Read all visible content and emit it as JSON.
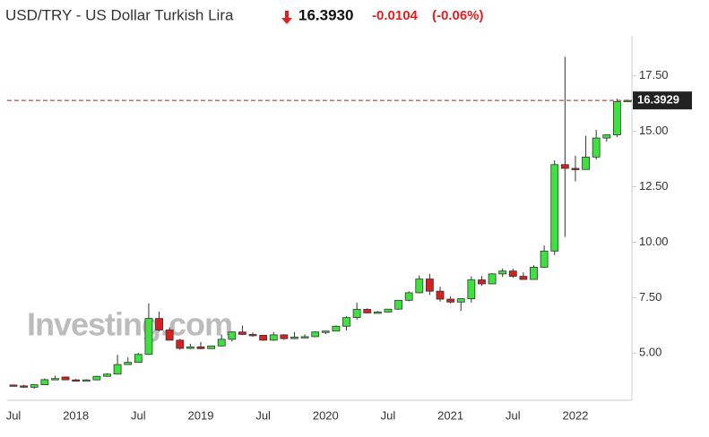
{
  "header": {
    "title": "USD/TRY - US Dollar Turkish Lira",
    "price": "16.3930",
    "change": "-0.0104",
    "change_pct": "(-0.06%)"
  },
  "chart_data": {
    "type": "candlestick",
    "watermark": "Investing.com",
    "categories": [
      "Jul",
      null,
      null,
      null,
      null,
      null,
      "2018",
      null,
      null,
      null,
      null,
      null,
      "Jul",
      null,
      null,
      null,
      null,
      null,
      "2019",
      null,
      null,
      null,
      null,
      null,
      "Jul",
      null,
      null,
      null,
      null,
      null,
      "2020",
      null,
      null,
      null,
      null,
      null,
      "Jul",
      null,
      null,
      null,
      null,
      null,
      "2021",
      null,
      null,
      null,
      null,
      null,
      "Jul",
      null,
      null,
      null,
      null,
      null,
      "2022",
      null,
      null,
      null,
      null,
      null
    ],
    "open": [
      3.56,
      3.52,
      3.46,
      3.57,
      3.8,
      3.92,
      3.79,
      3.76,
      3.79,
      3.95,
      4.05,
      4.48,
      4.58,
      4.94,
      6.56,
      6.04,
      5.58,
      5.21,
      5.28,
      5.2,
      5.32,
      5.62,
      5.95,
      5.84,
      5.8,
      5.58,
      5.82,
      5.65,
      5.72,
      5.74,
      5.95,
      5.99,
      6.21,
      6.6,
      6.97,
      6.81,
      6.85,
      6.98,
      7.38,
      7.72,
      8.34,
      7.79,
      7.43,
      7.3,
      7.45,
      8.3,
      8.12,
      8.57,
      8.7,
      8.46,
      8.32,
      8.87,
      9.6,
      13.5,
      13.33,
      13.28,
      13.84,
      14.7,
      14.84,
      16.39
    ],
    "high": [
      3.58,
      3.56,
      3.6,
      3.86,
      3.98,
      3.94,
      3.83,
      3.82,
      3.98,
      4.09,
      4.92,
      4.8,
      5.0,
      7.24,
      6.87,
      6.15,
      5.64,
      5.42,
      5.5,
      5.34,
      5.83,
      5.98,
      6.24,
      5.93,
      5.8,
      5.95,
      5.85,
      5.95,
      5.85,
      5.98,
      5.99,
      6.25,
      6.66,
      7.27,
      7.01,
      6.9,
      6.99,
      7.38,
      7.79,
      8.5,
      8.57,
      7.99,
      7.56,
      7.47,
      8.46,
      8.47,
      8.6,
      8.82,
      8.8,
      8.64,
      8.96,
      9.85,
      13.69,
      18.36,
      13.9,
      14.8,
      15.07,
      14.86,
      16.47,
      16.43
    ],
    "low": [
      3.5,
      3.43,
      3.39,
      3.55,
      3.78,
      3.78,
      3.72,
      3.73,
      3.77,
      3.93,
      4.04,
      4.47,
      4.56,
      4.91,
      5.97,
      5.58,
      5.15,
      5.18,
      5.17,
      5.19,
      5.3,
      5.52,
      5.81,
      5.73,
      5.55,
      5.55,
      5.59,
      5.63,
      5.7,
      5.71,
      5.85,
      5.98,
      6.02,
      6.5,
      6.79,
      6.8,
      6.84,
      6.95,
      7.33,
      7.69,
      7.62,
      7.32,
      7.24,
      6.9,
      7.27,
      8.04,
      8.11,
      8.43,
      8.39,
      8.31,
      8.31,
      8.84,
      9.42,
      10.24,
      12.74,
      13.32,
      13.73,
      14.53,
      14.74,
      16.36
    ],
    "close": [
      3.52,
      3.46,
      3.57,
      3.8,
      3.85,
      3.79,
      3.76,
      3.79,
      3.95,
      4.05,
      4.48,
      4.58,
      4.94,
      6.56,
      6.04,
      5.58,
      5.21,
      5.28,
      5.2,
      5.32,
      5.62,
      5.95,
      5.84,
      5.8,
      5.58,
      5.82,
      5.65,
      5.72,
      5.74,
      5.95,
      5.99,
      6.21,
      6.6,
      6.97,
      6.81,
      6.85,
      6.98,
      7.38,
      7.72,
      8.34,
      7.79,
      7.43,
      7.3,
      7.45,
      8.3,
      8.12,
      8.57,
      8.7,
      8.46,
      8.32,
      8.87,
      9.6,
      13.5,
      13.33,
      13.28,
      13.84,
      14.7,
      14.84,
      16.34,
      16.3929
    ],
    "up_color": "#3ee23e",
    "down_color": "#d91f1f",
    "ylim": [
      2.95,
      18.5
    ],
    "yticks": [
      {
        "value": 5,
        "label": "5.00"
      },
      {
        "value": 7.5,
        "label": "7.50"
      },
      {
        "value": 10,
        "label": "10.00"
      },
      {
        "value": 12.5,
        "label": "12.50"
      },
      {
        "value": 15,
        "label": "15.00"
      },
      {
        "value": 17.5,
        "label": "17.50"
      }
    ],
    "last_price": 16.3929,
    "last_price_color": "#b01c1c"
  }
}
